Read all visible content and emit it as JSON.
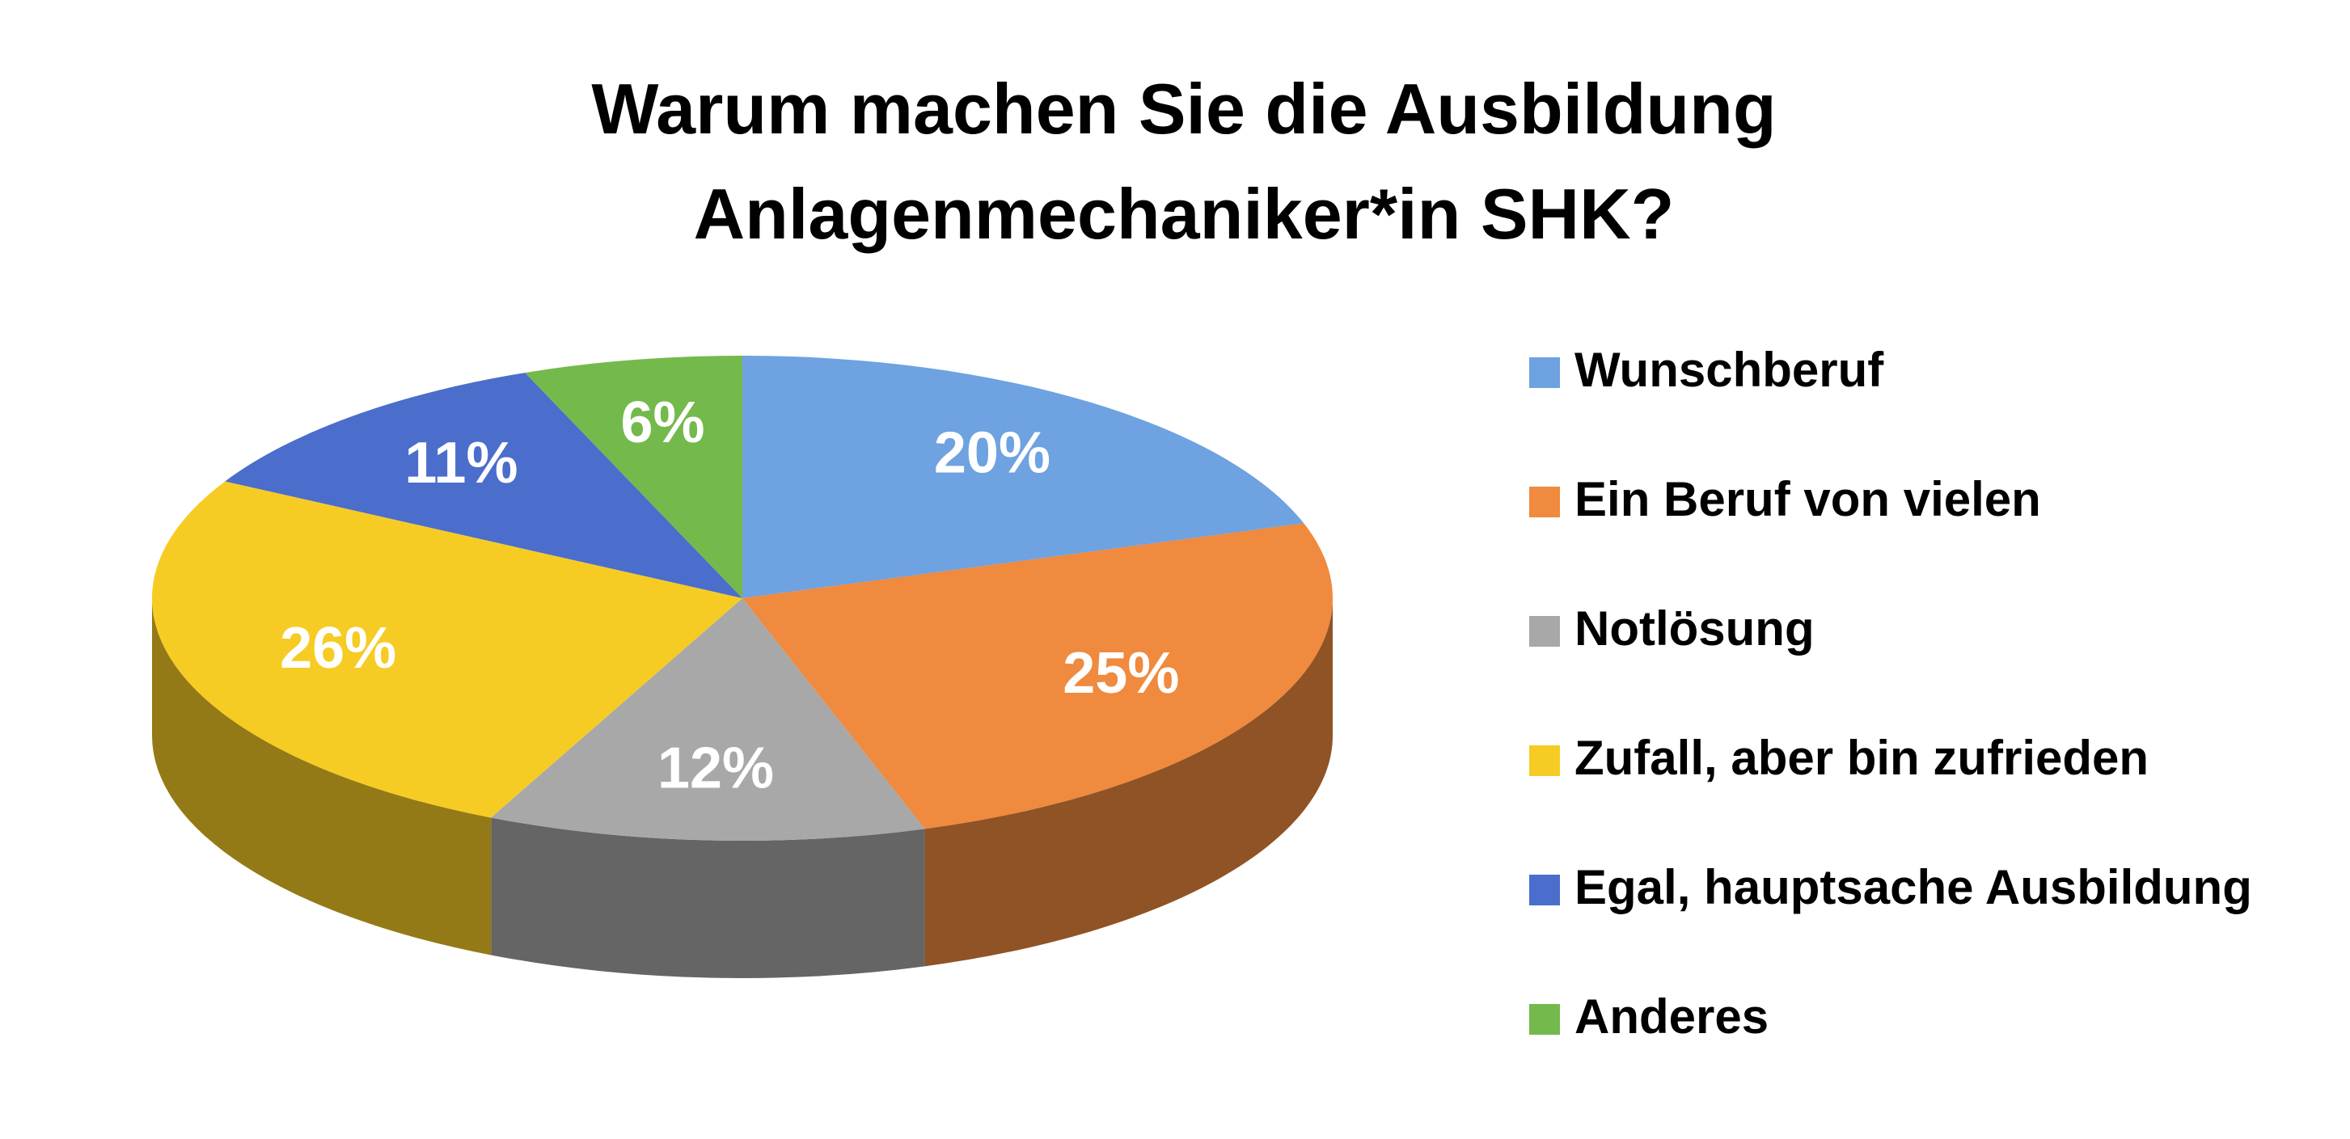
{
  "chart_data": {
    "type": "pie",
    "title": "Warum machen Sie die Ausbildung Anlagenmechaniker*in SHK?",
    "categories": [
      "Wunschberuf",
      "Ein Beruf von vielen",
      "Notlösung",
      "Zufall, aber bin zufrieden",
      "Egal, hauptsache Ausbildung",
      "Anderes"
    ],
    "values": [
      20,
      25,
      12,
      26,
      11,
      6
    ],
    "value_labels": [
      "20%",
      "25%",
      "12%",
      "26%",
      "11%",
      "6%"
    ],
    "colors": [
      "#6ea2e0",
      "#ef8a3e",
      "#a8a8a8",
      "#f6cc24",
      "#4b6dcc",
      "#74b94c"
    ],
    "legend": "right"
  }
}
